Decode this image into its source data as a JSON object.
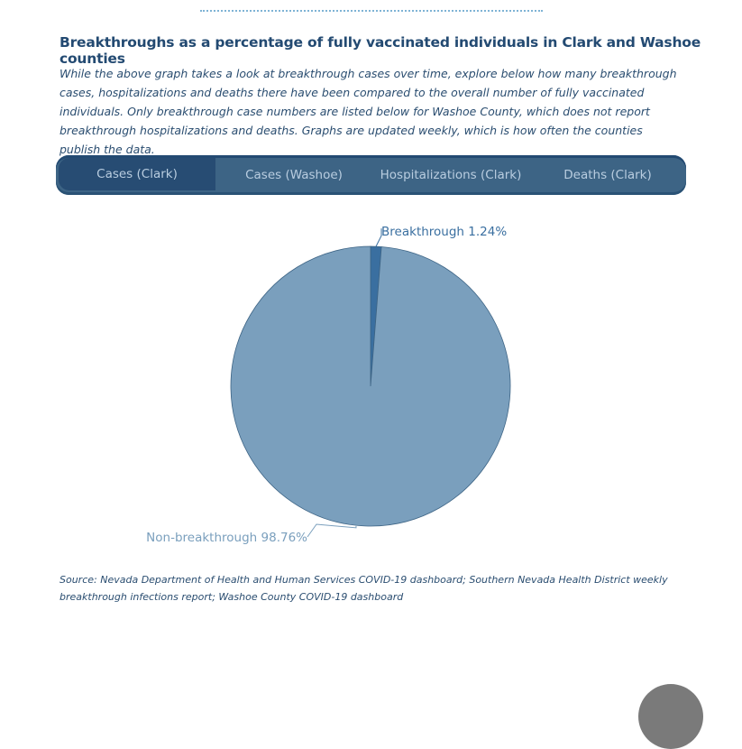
{
  "title": "Breakthroughs as a percentage of fully vaccinated individuals in Clark and Washoe counties",
  "description": "While the above graph takes a look at breakthrough cases over time, explore below how many breakthrough cases, hospitalizations and deaths there have been compared to the overall number of fully vaccinated individuals. Only breakthrough case numbers are listed below for Washoe County, which does not report breakthrough hospitalizations and deaths. Graphs are updated weekly, which is how often the counties publish the data.",
  "tabs": [
    {
      "label": "Cases (Clark)",
      "active": true
    },
    {
      "label": "Cases (Washoe)",
      "active": false
    },
    {
      "label": "Hospitalizations (Clark)",
      "active": false
    },
    {
      "label": "Deaths (Clark)",
      "active": false
    }
  ],
  "chart_data": {
    "type": "pie",
    "slices": [
      {
        "name": "Breakthrough",
        "value": 1.24,
        "label": "Breakthrough 1.24%",
        "color": "#3a6fa0"
      },
      {
        "name": "Non-breakthrough",
        "value": 98.76,
        "label": "Non-breakthrough 98.76%",
        "color": "#7a9fbd"
      }
    ]
  },
  "source": "Source: Nevada Department of Health and Human Services COVID-19 dashboard; Southern Nevada Health District weekly breakthrough infections report; Washoe County COVID-19 dashboard"
}
